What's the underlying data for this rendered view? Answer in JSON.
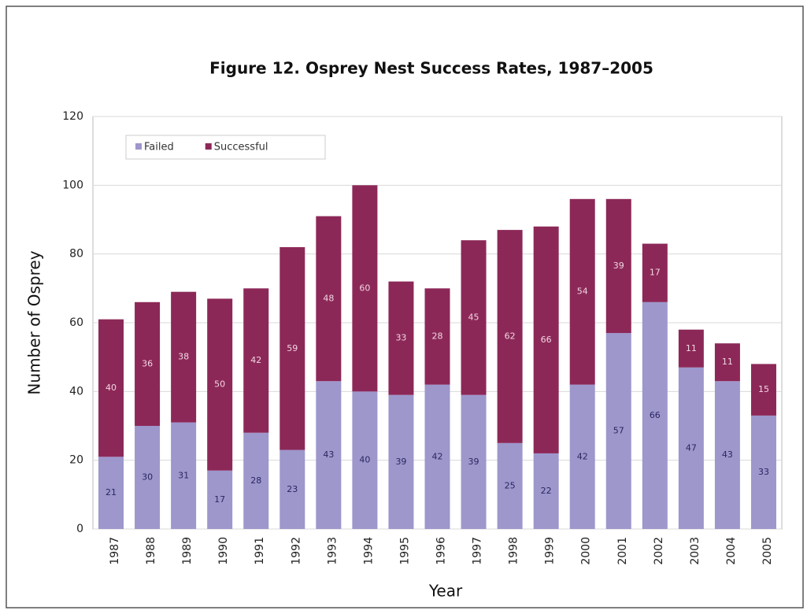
{
  "chart_data": {
    "type": "stacked_bar",
    "title": "Figure 12. Osprey Nest Success Rates, 1987–2005",
    "x_label": "Year",
    "y_label": "Number of Osprey",
    "categories": [
      "1987",
      "1988",
      "1989",
      "1990",
      "1991",
      "1992",
      "1993",
      "1994",
      "1995",
      "1996",
      "1997",
      "1998",
      "1999",
      "2000",
      "2001",
      "2002",
      "2003",
      "2004",
      "2005"
    ],
    "series": [
      {
        "name": "Failed",
        "color": "#9d97cc",
        "values": [
          21,
          30,
          31,
          17,
          28,
          23,
          43,
          40,
          39,
          42,
          39,
          25,
          22,
          42,
          57,
          66,
          47,
          43,
          33
        ]
      },
      {
        "name": "Successful",
        "color": "#8c2858",
        "values": [
          40,
          36,
          38,
          50,
          42,
          59,
          48,
          60,
          33,
          28,
          45,
          62,
          66,
          54,
          39,
          17,
          11,
          11,
          15
        ]
      }
    ],
    "ylim": [
      0,
      120
    ],
    "yticks": [
      0,
      20,
      40,
      60,
      80,
      100,
      120
    ],
    "grid": true,
    "legend": "top-left"
  }
}
